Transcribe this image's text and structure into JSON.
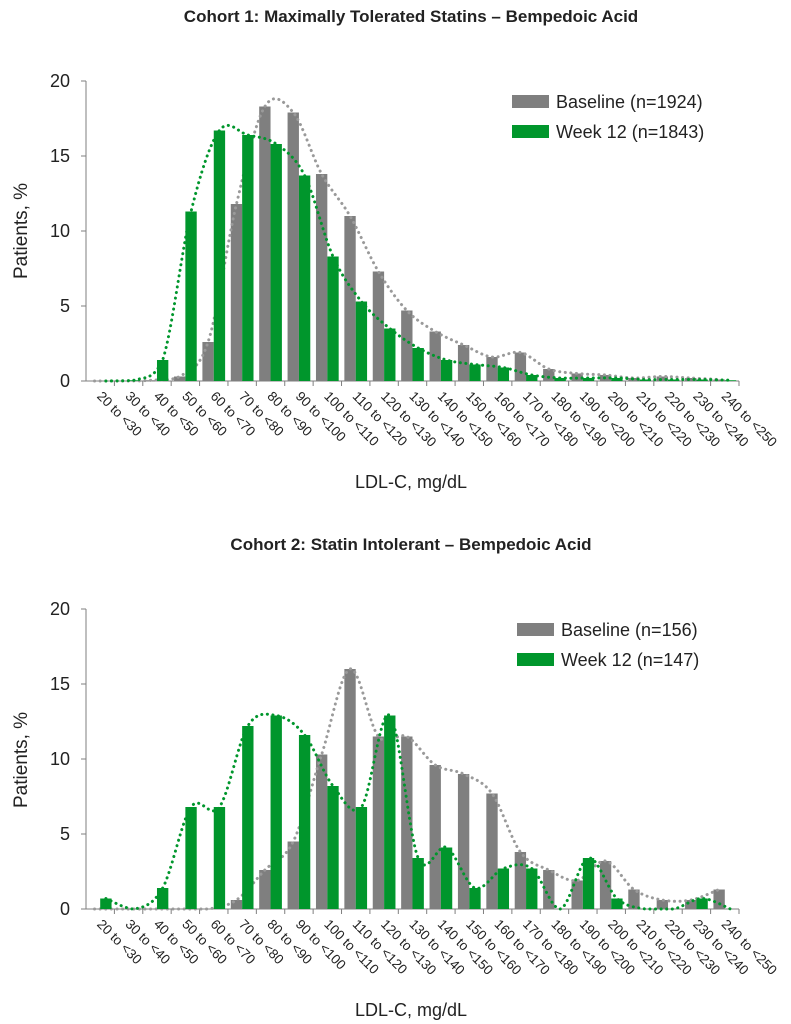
{
  "chart_data": [
    {
      "type": "bar",
      "title": "Cohort 1: Maximally Tolerated Statins – Bempedoic Acid",
      "xlabel": "LDL-C, mg/dL",
      "ylabel": "Patients, %",
      "ylim": [
        0,
        20
      ],
      "yticks": [
        "0",
        "5",
        "10",
        "15",
        "20"
      ],
      "legend_position": "top-right",
      "categories": [
        "20 to <30",
        "30 to <40",
        "40 to <50",
        "50 to <60",
        "60 to <70",
        "70 to <80",
        "80 to <90",
        "90 to <100",
        "100 to <110",
        "110 to <120",
        "120 to <130",
        "130 to <140",
        "140 to <150",
        "150 to <160",
        "160 to <170",
        "170 to <180",
        "180 to <190",
        "190 to <200",
        "200 to <210",
        "210 to <220",
        "220 to <230",
        "230 to <240",
        "240 to <250"
      ],
      "series": [
        {
          "name": "Baseline (n=1924)",
          "color": "#7f7f7f",
          "values": [
            0,
            0,
            0.05,
            0.3,
            2.6,
            11.8,
            18.3,
            17.9,
            13.8,
            11.0,
            7.3,
            4.7,
            3.3,
            2.4,
            1.6,
            1.9,
            0.8,
            0.5,
            0.4,
            0.2,
            0.3,
            0.2,
            0.1
          ]
        },
        {
          "name": "Week 12 (n=1843)",
          "color": "#00962c",
          "values": [
            0,
            0.05,
            1.4,
            11.3,
            16.7,
            16.4,
            15.8,
            13.7,
            8.3,
            5.3,
            3.5,
            2.2,
            1.4,
            1.1,
            0.9,
            0.4,
            0.2,
            0.2,
            0.2,
            0.1,
            0.1,
            0.1,
            0.05
          ]
        }
      ]
    },
    {
      "type": "bar",
      "title": "Cohort 2: Statin Intolerant – Bempedoic Acid",
      "xlabel": "LDL-C, mg/dL",
      "ylabel": "Patients, %",
      "ylim": [
        0,
        20
      ],
      "yticks": [
        "0",
        "5",
        "10",
        "15",
        "20"
      ],
      "legend_position": "top-right",
      "categories": [
        "20 to <30",
        "30 to <40",
        "40 to <50",
        "50 to <60",
        "60 to <70",
        "70 to <80",
        "80 to <90",
        "90 to <100",
        "100 to <110",
        "110 to <120",
        "120 to <130",
        "130 to <140",
        "140 to <150",
        "150 to <160",
        "160 to <170",
        "170 to <180",
        "180 to <190",
        "190 to <200",
        "200 to <210",
        "210 to <220",
        "220 to <230",
        "230 to <240",
        "240 to <250"
      ],
      "series": [
        {
          "name": "Baseline (n=156)",
          "color": "#7f7f7f",
          "values": [
            0,
            0,
            0,
            0,
            0,
            0.6,
            2.6,
            4.5,
            10.3,
            16.0,
            11.5,
            11.5,
            9.6,
            9.0,
            7.7,
            3.8,
            2.6,
            1.9,
            3.2,
            1.3,
            0.6,
            0.6,
            1.3
          ]
        },
        {
          "name": "Week 12 (n=147)",
          "color": "#00962c",
          "values": [
            0.7,
            0,
            1.4,
            6.8,
            6.8,
            12.2,
            12.9,
            11.6,
            8.2,
            6.8,
            12.9,
            3.4,
            4.1,
            1.4,
            2.7,
            2.7,
            0,
            3.4,
            0.7,
            0,
            0,
            0.7,
            0
          ]
        }
      ]
    }
  ]
}
